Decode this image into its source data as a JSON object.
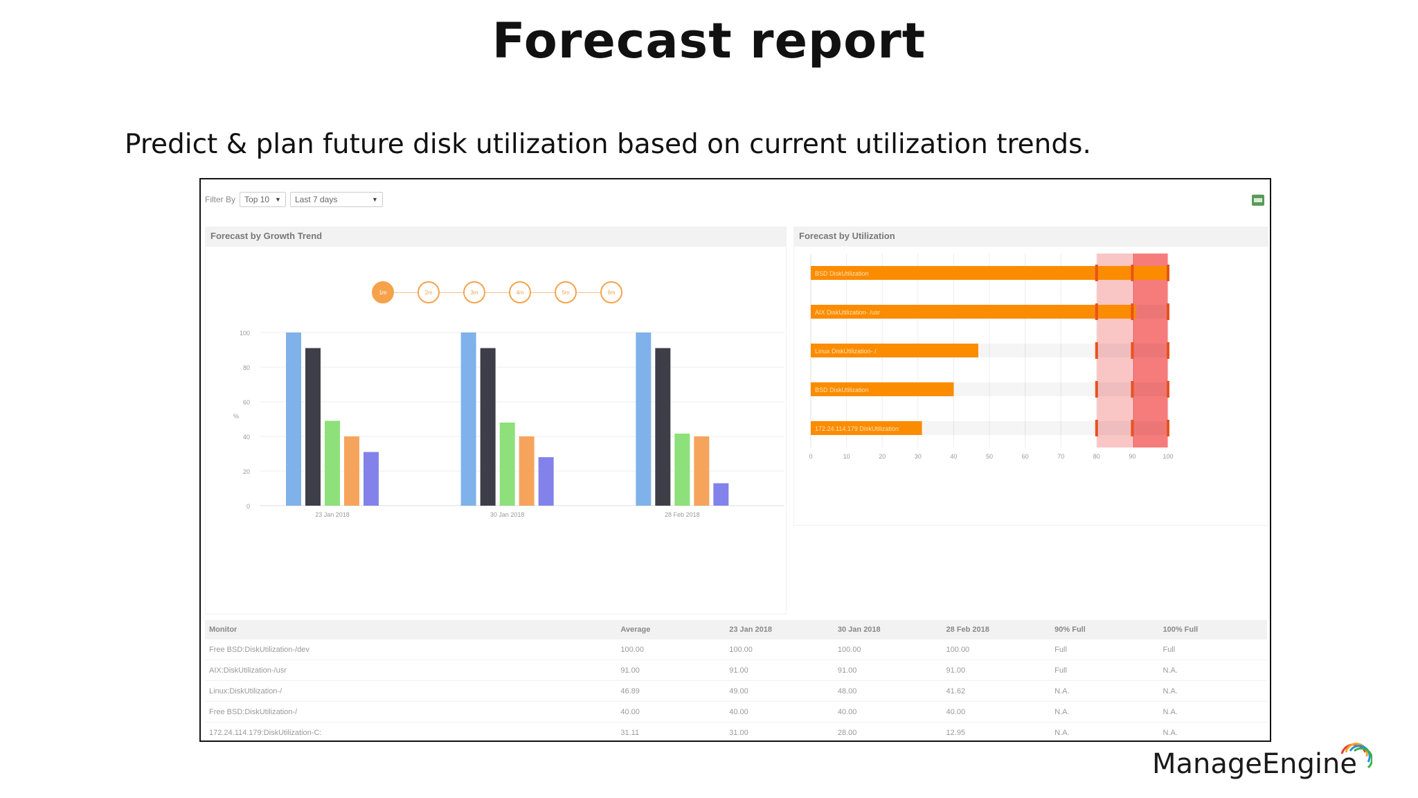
{
  "slide": {
    "title": "Forecast report",
    "subtitle": "Predict & plan future disk utilization based on current utilization trends.",
    "logo_text": "ManageEngine"
  },
  "filter": {
    "label": "Filter By",
    "top_select": "Top 10",
    "range_select": "Last 7 days"
  },
  "growth_panel": {
    "title": "Forecast by Growth Trend",
    "steps": [
      "1m",
      "2m",
      "3m",
      "4m",
      "5m",
      "6m"
    ],
    "active_step": 0
  },
  "util_panel": {
    "title": "Forecast by Utilization"
  },
  "colors": {
    "blue": "#7fb2ea",
    "dark": "#3e3e48",
    "green": "#8de07a",
    "orange": "#f6a45c",
    "purple": "#8282ea",
    "bar_orange": "#fb8c00",
    "zone_90": "#f9c5c5",
    "zone_100": "#f67b7b"
  },
  "chart_data": [
    {
      "type": "bar",
      "title": "Forecast by Growth Trend",
      "ylabel": "%",
      "categories": [
        "23 Jan 2018",
        "30 Jan 2018",
        "28 Feb 2018"
      ],
      "ylim": [
        0,
        100
      ],
      "yticks": [
        0,
        20,
        40,
        60,
        80,
        100
      ],
      "series": [
        {
          "values": [
            100,
            100,
            100
          ]
        },
        {
          "values": [
            91,
            91,
            91
          ]
        },
        {
          "values": [
            49,
            48,
            41.62
          ]
        },
        {
          "values": [
            40,
            40,
            40
          ]
        },
        {
          "values": [
            31,
            28,
            12.95
          ]
        }
      ]
    },
    {
      "type": "bar",
      "orientation": "horizontal",
      "title": "Forecast by Utilization",
      "categories": [
        "BSD DiskUtilization",
        "AIX DiskUtilization- /usr",
        "Linux DiskUtilization- /",
        "BSD DiskUtilization",
        "172.24.114.179 DiskUtilization"
      ],
      "values": [
        100,
        91,
        46.89,
        40,
        31.11
      ],
      "xlim": [
        0,
        100
      ],
      "xticks": [
        0,
        10,
        20,
        30,
        40,
        50,
        60,
        70,
        80,
        90,
        100
      ]
    }
  ],
  "table": {
    "headers": [
      "Monitor",
      "Average",
      "23 Jan 2018",
      "30 Jan 2018",
      "28 Feb 2018",
      "90% Full",
      "100% Full"
    ],
    "rows": [
      [
        "Free BSD:DiskUtilization-/dev",
        "100.00",
        "100.00",
        "100.00",
        "100.00",
        "Full",
        "Full"
      ],
      [
        "AIX:DiskUtilization-/usr",
        "91.00",
        "91.00",
        "91.00",
        "91.00",
        "Full",
        "N.A."
      ],
      [
        "Linux:DiskUtilization-/",
        "46.89",
        "49.00",
        "48.00",
        "41.62",
        "N.A.",
        "N.A."
      ],
      [
        "Free BSD:DiskUtilization-/",
        "40.00",
        "40.00",
        "40.00",
        "40.00",
        "N.A.",
        "N.A."
      ],
      [
        "172.24.114.179:DiskUtilization-C:",
        "31.11",
        "31.00",
        "28.00",
        "12.95",
        "N.A.",
        "N.A."
      ]
    ]
  }
}
